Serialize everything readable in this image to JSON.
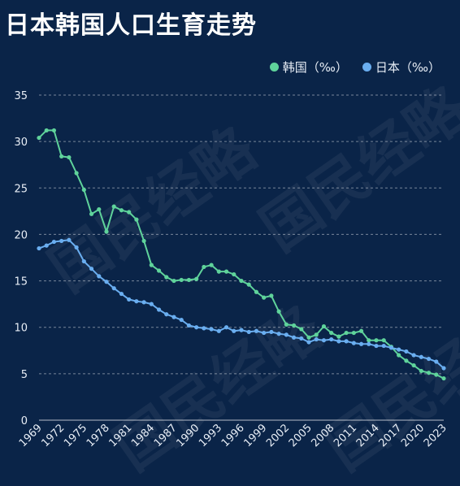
{
  "title": "日本韩国人口生育走势",
  "watermark": "国民经略",
  "chart_data": {
    "type": "line",
    "title": "日本韩国人口生育走势",
    "xlabel": "",
    "ylabel": "",
    "x": [
      1969,
      1970,
      1971,
      1972,
      1973,
      1974,
      1975,
      1976,
      1977,
      1978,
      1979,
      1980,
      1981,
      1982,
      1983,
      1984,
      1985,
      1986,
      1987,
      1988,
      1989,
      1990,
      1991,
      1992,
      1993,
      1994,
      1995,
      1996,
      1997,
      1998,
      1999,
      2000,
      2001,
      2002,
      2003,
      2004,
      2005,
      2006,
      2007,
      2008,
      2009,
      2010,
      2011,
      2012,
      2013,
      2014,
      2015,
      2016,
      2017,
      2018,
      2019,
      2020,
      2021,
      2022,
      2023
    ],
    "x_tick_labels": [
      "1969",
      "1972",
      "1975",
      "1978",
      "1981",
      "1984",
      "1987",
      "1990",
      "1993",
      "1996",
      "1999",
      "2002",
      "2005",
      "2008",
      "2011",
      "2014",
      "2017",
      "2020",
      "2023"
    ],
    "ylim": [
      0,
      35
    ],
    "y_ticks": [
      0,
      5,
      10,
      15,
      20,
      25,
      30,
      35
    ],
    "grid": true,
    "legend_position": "top-right",
    "series": [
      {
        "name": "韩国（‰）",
        "color": "#5fd39b",
        "values": [
          30.4,
          31.2,
          31.2,
          28.4,
          28.3,
          26.6,
          24.8,
          22.2,
          22.7,
          20.3,
          23.0,
          22.6,
          22.4,
          21.6,
          19.3,
          16.7,
          16.1,
          15.4,
          15.0,
          15.1,
          15.1,
          15.2,
          16.5,
          16.7,
          16.0,
          16.0,
          15.7,
          15.0,
          14.6,
          13.8,
          13.2,
          13.4,
          11.7,
          10.3,
          10.2,
          9.8,
          8.9,
          9.2,
          10.1,
          9.4,
          9.0,
          9.4,
          9.4,
          9.6,
          8.6,
          8.6,
          8.6,
          7.9,
          7.0,
          6.4,
          5.9,
          5.3,
          5.1,
          4.9,
          4.5
        ]
      },
      {
        "name": "日本（‰）",
        "color": "#6aaef0",
        "values": [
          18.5,
          18.8,
          19.2,
          19.3,
          19.4,
          18.6,
          17.1,
          16.3,
          15.5,
          14.9,
          14.2,
          13.6,
          13.0,
          12.8,
          12.7,
          12.5,
          11.9,
          11.4,
          11.1,
          10.8,
          10.2,
          10.0,
          9.9,
          9.8,
          9.6,
          10.0,
          9.6,
          9.7,
          9.5,
          9.6,
          9.4,
          9.5,
          9.3,
          9.2,
          8.9,
          8.8,
          8.4,
          8.7,
          8.6,
          8.7,
          8.5,
          8.5,
          8.3,
          8.2,
          8.2,
          8.0,
          8.0,
          7.8,
          7.6,
          7.4,
          7.0,
          6.8,
          6.6,
          6.3,
          5.6
        ]
      }
    ]
  }
}
